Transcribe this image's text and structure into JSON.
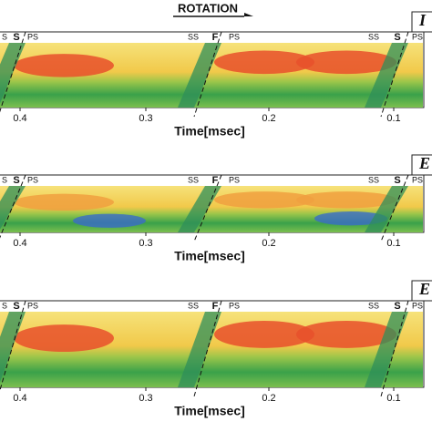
{
  "header": {
    "title": "ROTATION"
  },
  "panels": [
    {
      "label": "I",
      "blade_labels": [
        "S",
        "S",
        "PS",
        "SS",
        "F",
        "PS",
        "SS",
        "S",
        "PS"
      ],
      "ticks": [
        "0.4",
        "0.3",
        "0.2",
        "0.1"
      ],
      "x_label": "Time[msec]"
    },
    {
      "label": "E",
      "blade_labels": [
        "S",
        "S",
        "PS",
        "SS",
        "F",
        "PS",
        "SS",
        "S",
        "PS"
      ],
      "ticks": [
        "0.4",
        "0.3",
        "0.2",
        "0.1"
      ],
      "x_label": "Time[msec]"
    },
    {
      "label": "E",
      "blade_labels": [
        "S",
        "S",
        "PS",
        "SS",
        "F",
        "PS",
        "SS",
        "S",
        "PS"
      ],
      "ticks": [
        "0.4",
        "0.3",
        "0.2",
        "0.1"
      ],
      "x_label": "Time[msec]"
    }
  ]
}
